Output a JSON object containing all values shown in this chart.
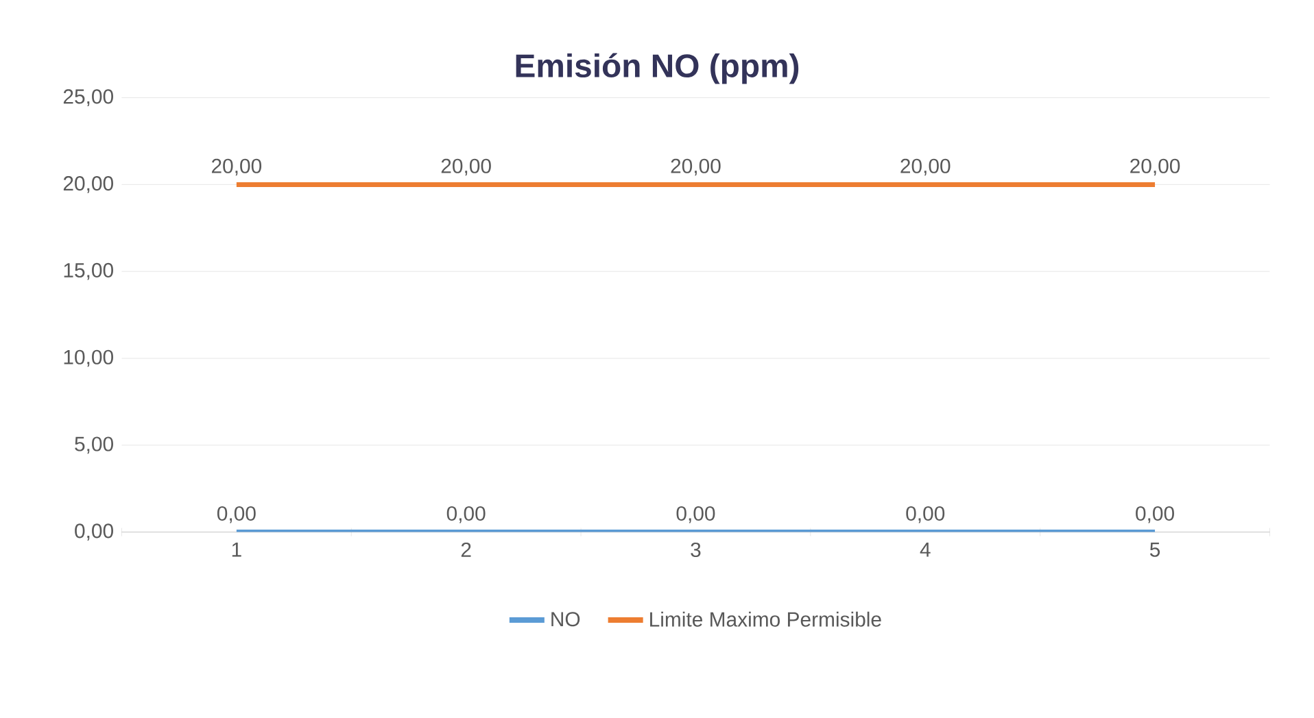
{
  "chart_data": {
    "type": "line",
    "title": "Emisión NO (ppm)",
    "categories": [
      "1",
      "2",
      "3",
      "4",
      "5"
    ],
    "series": [
      {
        "name": "NO",
        "color": "#5b9bd5",
        "values": [
          0,
          0,
          0,
          0,
          0
        ],
        "value_labels": [
          "0,00",
          "0,00",
          "0,00",
          "0,00",
          "0,00"
        ]
      },
      {
        "name": "Limite Maximo Permisible",
        "color": "#ed7d31",
        "values": [
          20,
          20,
          20,
          20,
          20
        ],
        "value_labels": [
          "20,00",
          "20,00",
          "20,00",
          "20,00",
          "20,00"
        ]
      }
    ],
    "ylim": [
      0,
      25
    ],
    "yticks": [
      {
        "value": 0,
        "label": "0,00"
      },
      {
        "value": 5,
        "label": "5,00"
      },
      {
        "value": 10,
        "label": "10,00"
      },
      {
        "value": 15,
        "label": "15,00"
      },
      {
        "value": 20,
        "label": "20,00"
      },
      {
        "value": 25,
        "label": "25,00"
      }
    ],
    "grid": "y",
    "legend": "bottom",
    "marker": "none",
    "line_style": "solid"
  }
}
